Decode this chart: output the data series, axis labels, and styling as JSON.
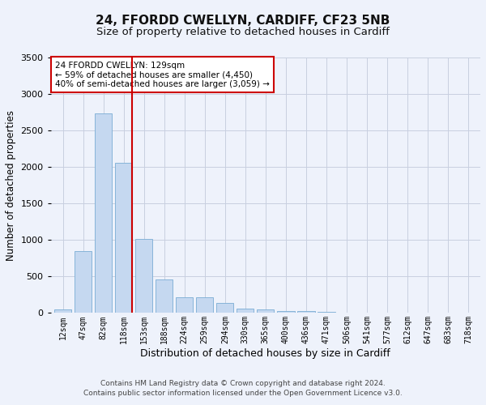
{
  "title_line1": "24, FFORDD CWELLYN, CARDIFF, CF23 5NB",
  "title_line2": "Size of property relative to detached houses in Cardiff",
  "xlabel": "Distribution of detached houses by size in Cardiff",
  "ylabel": "Number of detached properties",
  "categories": [
    "12sqm",
    "47sqm",
    "82sqm",
    "118sqm",
    "153sqm",
    "188sqm",
    "224sqm",
    "259sqm",
    "294sqm",
    "330sqm",
    "365sqm",
    "400sqm",
    "436sqm",
    "471sqm",
    "506sqm",
    "541sqm",
    "577sqm",
    "612sqm",
    "647sqm",
    "683sqm",
    "718sqm"
  ],
  "values": [
    55,
    850,
    2730,
    2060,
    1010,
    455,
    220,
    215,
    135,
    60,
    50,
    30,
    25,
    15,
    5,
    2,
    1,
    0,
    0,
    0,
    0
  ],
  "bar_color": "#c5d8f0",
  "bar_edge_color": "#7aadd4",
  "vline_color": "#cc0000",
  "vline_index": 3,
  "ylim": [
    0,
    3500
  ],
  "yticks": [
    0,
    500,
    1000,
    1500,
    2000,
    2500,
    3000,
    3500
  ],
  "annotation_text": "24 FFORDD CWELLYN: 129sqm\n← 59% of detached houses are smaller (4,450)\n40% of semi-detached houses are larger (3,059) →",
  "annotation_box_color": "#ffffff",
  "annotation_box_edge": "#cc0000",
  "footer_line1": "Contains HM Land Registry data © Crown copyright and database right 2024.",
  "footer_line2": "Contains public sector information licensed under the Open Government Licence v3.0.",
  "background_color": "#eef2fb",
  "plot_background": "#eef2fb",
  "grid_color": "#c8cfe0",
  "title_fontsize": 11,
  "subtitle_fontsize": 9.5,
  "ylabel_fontsize": 8.5,
  "xlabel_fontsize": 9,
  "tick_fontsize": 7,
  "footer_fontsize": 6.5,
  "ann_fontsize": 7.5
}
